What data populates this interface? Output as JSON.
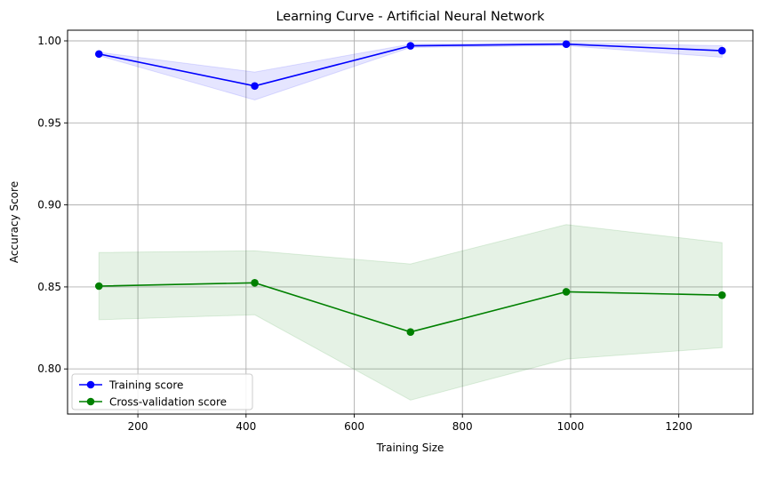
{
  "chart_data": {
    "type": "line",
    "title": "Learning Curve - Artificial Neural Network",
    "xlabel": "Training Size",
    "ylabel": "Accuracy Score",
    "xlim": [
      70,
      1337
    ],
    "ylim": [
      0.7725,
      1.0065
    ],
    "xticks": [
      200,
      400,
      600,
      800,
      1000,
      1200
    ],
    "xtick_labels": [
      "200",
      "400",
      "600",
      "800",
      "1000",
      "1200"
    ],
    "yticks": [
      0.8,
      0.85,
      0.9,
      0.95,
      1.0
    ],
    "ytick_labels": [
      "0.80",
      "0.85",
      "0.90",
      "0.95",
      "1.00"
    ],
    "grid": true,
    "legend_position": "lower-left",
    "x": [
      128,
      416,
      704,
      992,
      1280
    ],
    "series": [
      {
        "name": "Training score",
        "color": "#0000ff",
        "marker": "circle",
        "values": [
          0.992,
          0.9725,
          0.997,
          0.998,
          0.994
        ],
        "band_lower": [
          0.991,
          0.964,
          0.996,
          0.997,
          0.99
        ],
        "band_upper": [
          0.993,
          0.981,
          0.998,
          0.999,
          0.997
        ]
      },
      {
        "name": "Cross-validation score",
        "color": "#008000",
        "marker": "circle",
        "values": [
          0.8505,
          0.8525,
          0.8225,
          0.847,
          0.845
        ],
        "band_lower": [
          0.83,
          0.833,
          0.781,
          0.806,
          0.813
        ],
        "band_upper": [
          0.871,
          0.872,
          0.864,
          0.888,
          0.877
        ]
      }
    ]
  }
}
